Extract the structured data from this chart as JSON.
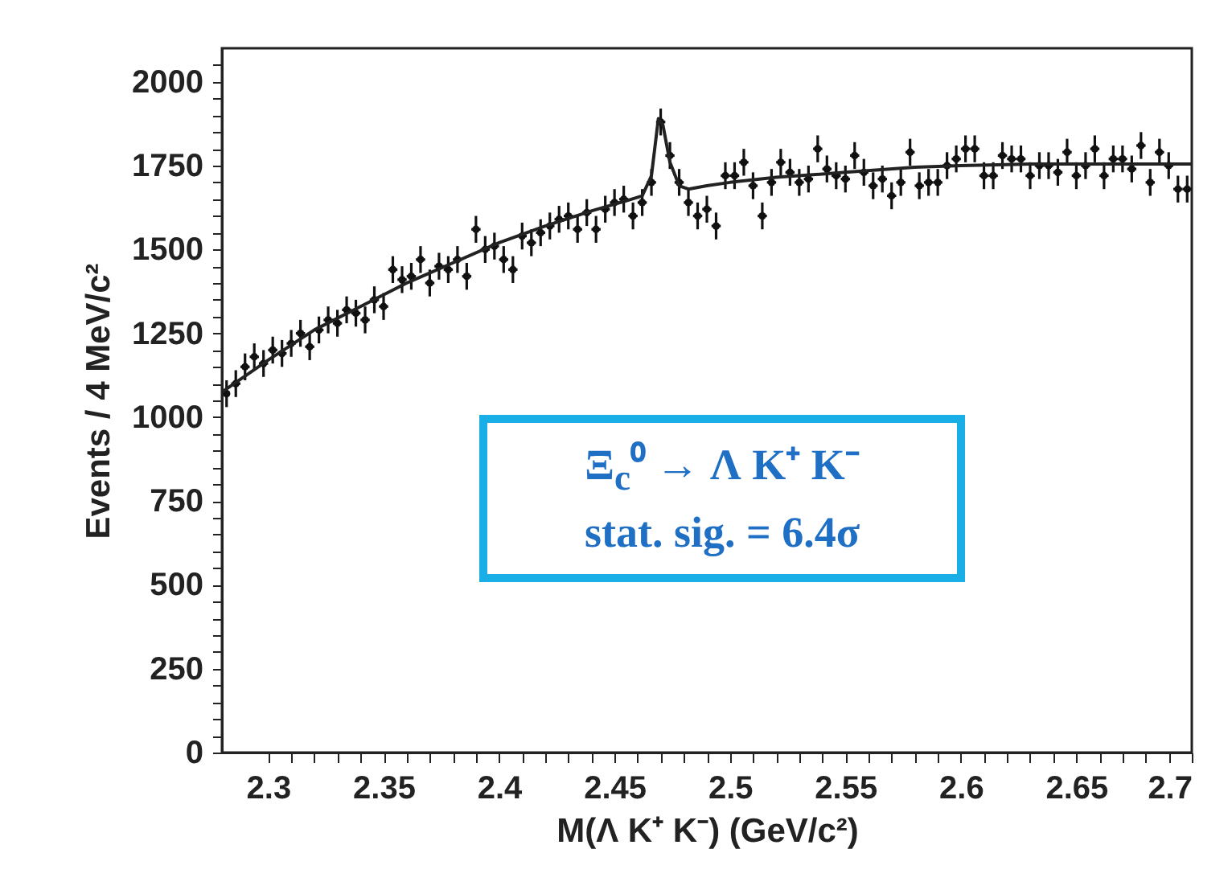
{
  "chart_data": {
    "type": "scatter",
    "xlabel": "M(Λ K⁺ K⁻)  (GeV/c²)",
    "ylabel": "Events / 4 MeV/c²",
    "annotations": [
      "Ξ$_{c}$⁰ → Λ K⁺ K⁻",
      "stat. sig. = 6.4σ"
    ],
    "xlim": [
      2.28,
      2.7
    ],
    "ylim": [
      0,
      2100
    ],
    "xticks": [
      2.3,
      {
        "value": 2.31,
        "label": null
      },
      {
        "value": 2.32,
        "label": null
      },
      {
        "value": 2.33,
        "label": null
      },
      {
        "value": 2.34,
        "label": null
      },
      2.35,
      {
        "value": 2.36,
        "label": null
      },
      {
        "value": 2.37,
        "label": null
      },
      {
        "value": 2.38,
        "label": null
      },
      {
        "value": 2.39,
        "label": null
      },
      2.4,
      {
        "value": 2.41,
        "label": null
      },
      {
        "value": 2.42,
        "label": null
      },
      {
        "value": 2.43,
        "label": null
      },
      {
        "value": 2.44,
        "label": null
      },
      2.45,
      {
        "value": 2.46,
        "label": null
      },
      {
        "value": 2.47,
        "label": null
      },
      {
        "value": 2.48,
        "label": null
      },
      {
        "value": 2.49,
        "label": null
      },
      2.5,
      {
        "value": 2.51,
        "label": null
      },
      {
        "value": 2.52,
        "label": null
      },
      {
        "value": 2.53,
        "label": null
      },
      {
        "value": 2.54,
        "label": null
      },
      2.55,
      {
        "value": 2.56,
        "label": null
      },
      {
        "value": 2.57,
        "label": null
      },
      {
        "value": 2.58,
        "label": null
      },
      {
        "value": 2.59,
        "label": null
      },
      2.6,
      {
        "value": 2.61,
        "label": null
      },
      {
        "value": 2.62,
        "label": null
      },
      {
        "value": 2.63,
        "label": null
      },
      {
        "value": 2.64,
        "label": null
      },
      2.65,
      {
        "value": 2.66,
        "label": null
      },
      {
        "value": 2.67,
        "label": null
      },
      {
        "value": 2.68,
        "label": null
      },
      {
        "value": 2.69,
        "label": null
      },
      2.7
    ],
    "yticks": [
      0,
      {
        "value": 50,
        "label": null
      },
      {
        "value": 100,
        "label": null
      },
      {
        "value": 150,
        "label": null
      },
      {
        "value": 200,
        "label": null
      },
      250,
      {
        "value": 300,
        "label": null
      },
      {
        "value": 350,
        "label": null
      },
      {
        "value": 400,
        "label": null
      },
      {
        "value": 450,
        "label": null
      },
      500,
      {
        "value": 550,
        "label": null
      },
      {
        "value": 600,
        "label": null
      },
      {
        "value": 650,
        "label": null
      },
      {
        "value": 700,
        "label": null
      },
      750,
      {
        "value": 800,
        "label": null
      },
      {
        "value": 850,
        "label": null
      },
      {
        "value": 900,
        "label": null
      },
      {
        "value": 950,
        "label": null
      },
      1000,
      {
        "value": 1050,
        "label": null
      },
      {
        "value": 1100,
        "label": null
      },
      {
        "value": 1150,
        "label": null
      },
      {
        "value": 1200,
        "label": null
      },
      1250,
      {
        "value": 1300,
        "label": null
      },
      {
        "value": 1350,
        "label": null
      },
      {
        "value": 1400,
        "label": null
      },
      {
        "value": 1450,
        "label": null
      },
      1500,
      {
        "value": 1550,
        "label": null
      },
      {
        "value": 1600,
        "label": null
      },
      {
        "value": 1650,
        "label": null
      },
      {
        "value": 1700,
        "label": null
      },
      1750,
      {
        "value": 1800,
        "label": null
      },
      {
        "value": 1850,
        "label": null
      },
      {
        "value": 1900,
        "label": null
      },
      {
        "value": 1950,
        "label": null
      },
      2000,
      {
        "value": 2050,
        "label": null
      }
    ],
    "grid": false,
    "series": [
      {
        "marker": "circle",
        "color": "#111111",
        "x": [
          2.282,
          2.286,
          2.29,
          2.294,
          2.298,
          2.302,
          2.306,
          2.31,
          2.314,
          2.318,
          2.322,
          2.326,
          2.33,
          2.334,
          2.338,
          2.342,
          2.346,
          2.35,
          2.354,
          2.358,
          2.362,
          2.366,
          2.37,
          2.374,
          2.378,
          2.382,
          2.386,
          2.39,
          2.394,
          2.398,
          2.402,
          2.406,
          2.41,
          2.414,
          2.418,
          2.422,
          2.426,
          2.43,
          2.434,
          2.438,
          2.442,
          2.446,
          2.45,
          2.454,
          2.458,
          2.462,
          2.466,
          2.47,
          2.474,
          2.478,
          2.482,
          2.486,
          2.49,
          2.494,
          2.498,
          2.502,
          2.506,
          2.51,
          2.514,
          2.518,
          2.522,
          2.526,
          2.53,
          2.534,
          2.538,
          2.542,
          2.546,
          2.55,
          2.554,
          2.558,
          2.562,
          2.566,
          2.57,
          2.574,
          2.578,
          2.582,
          2.586,
          2.59,
          2.594,
          2.598,
          2.602,
          2.606,
          2.61,
          2.614,
          2.618,
          2.622,
          2.626,
          2.63,
          2.634,
          2.638,
          2.642,
          2.646,
          2.65,
          2.654,
          2.658,
          2.662,
          2.666,
          2.67,
          2.674,
          2.678,
          2.682,
          2.686,
          2.69,
          2.694,
          2.698
        ],
        "values": [
          1070,
          1100,
          1150,
          1180,
          1160,
          1200,
          1190,
          1220,
          1250,
          1210,
          1260,
          1290,
          1280,
          1320,
          1310,
          1290,
          1350,
          1330,
          1440,
          1410,
          1420,
          1470,
          1400,
          1450,
          1440,
          1470,
          1420,
          1560,
          1500,
          1510,
          1470,
          1440,
          1540,
          1520,
          1550,
          1570,
          1590,
          1600,
          1560,
          1610,
          1560,
          1620,
          1640,
          1650,
          1600,
          1640,
          1700,
          1880,
          1780,
          1700,
          1640,
          1600,
          1620,
          1570,
          1720,
          1720,
          1760,
          1690,
          1600,
          1700,
          1760,
          1730,
          1700,
          1710,
          1800,
          1740,
          1720,
          1710,
          1780,
          1730,
          1690,
          1710,
          1660,
          1700,
          1790,
          1690,
          1700,
          1700,
          1750,
          1770,
          1800,
          1800,
          1720,
          1720,
          1780,
          1770,
          1770,
          1720,
          1750,
          1750,
          1730,
          1790,
          1720,
          1750,
          1800,
          1720,
          1770,
          1770,
          1740,
          1810,
          1700,
          1790,
          1750,
          1680,
          1680
        ],
        "errors": [
          40,
          40,
          40,
          40,
          40,
          40,
          40,
          40,
          40,
          40,
          40,
          40,
          40,
          40,
          40,
          40,
          40,
          40,
          40,
          40,
          40,
          40,
          40,
          40,
          40,
          40,
          40,
          40,
          40,
          40,
          40,
          40,
          40,
          40,
          40,
          40,
          40,
          40,
          40,
          40,
          40,
          40,
          40,
          40,
          40,
          40,
          40,
          40,
          40,
          40,
          40,
          40,
          40,
          40,
          40,
          40,
          40,
          40,
          40,
          40,
          40,
          40,
          40,
          40,
          40,
          40,
          40,
          40,
          40,
          40,
          40,
          40,
          40,
          40,
          40,
          40,
          40,
          40,
          40,
          40,
          40,
          40,
          40,
          40,
          40,
          40,
          40,
          40,
          40,
          40,
          40,
          40,
          40,
          40,
          40,
          40,
          40,
          40,
          40,
          40,
          40,
          40,
          40,
          40,
          40
        ],
        "xerrors": [
          null,
          0.002,
          0.002,
          0.002,
          0.002,
          0.002,
          0.002,
          0.002,
          0.002,
          0.002,
          0.002,
          0.002,
          0.002,
          0.002,
          0.002,
          0.002,
          0.002,
          0.002,
          0.002,
          0.002,
          0.002,
          0.002,
          0.002,
          0.002,
          0.002,
          0.002,
          0.002,
          0.002,
          0.002,
          0.002,
          0.002,
          0.002,
          0.002,
          0.002,
          0.002,
          0.002,
          0.002,
          0.002,
          0.002,
          0.002,
          0.002,
          0.002,
          0.002,
          0.002,
          0.002,
          0.002,
          0.002,
          0.002,
          0.002,
          0.002,
          0.002,
          0.002,
          0.002,
          0.002,
          0.002,
          0.002,
          0.002,
          0.002,
          0.002,
          0.002,
          0.002,
          0.002,
          0.002,
          0.002,
          0.002,
          0.002,
          0.002,
          0.002,
          0.002,
          0.002,
          0.002,
          0.002,
          0.002,
          0.002,
          0.002,
          0.002,
          0.002,
          0.002,
          0.002,
          0.002,
          0.002,
          0.002,
          0.002,
          0.002,
          0.002,
          0.002,
          0.002,
          0.002,
          0.002,
          0.002,
          0.002,
          0.002,
          0.002,
          0.002,
          0.002,
          0.002,
          0.002,
          0.002,
          0.002,
          0.002,
          0.002,
          0.002,
          0.002,
          0.002,
          0.002
        ]
      },
      {
        "type": "line",
        "color": "#222222",
        "x": [
          2.28,
          2.3,
          2.32,
          2.34,
          2.36,
          2.38,
          2.4,
          2.42,
          2.44,
          2.455,
          2.462,
          2.466,
          2.469,
          2.471,
          2.474,
          2.478,
          2.482,
          2.49,
          2.5,
          2.52,
          2.55,
          2.58,
          2.6,
          2.63,
          2.66,
          2.7
        ],
        "values": [
          1075,
          1170,
          1260,
          1330,
          1400,
          1460,
          1520,
          1570,
          1615,
          1645,
          1660,
          1720,
          1890,
          1870,
          1760,
          1690,
          1680,
          1690,
          1700,
          1715,
          1730,
          1745,
          1750,
          1755,
          1755,
          1755
        ]
      }
    ]
  }
}
